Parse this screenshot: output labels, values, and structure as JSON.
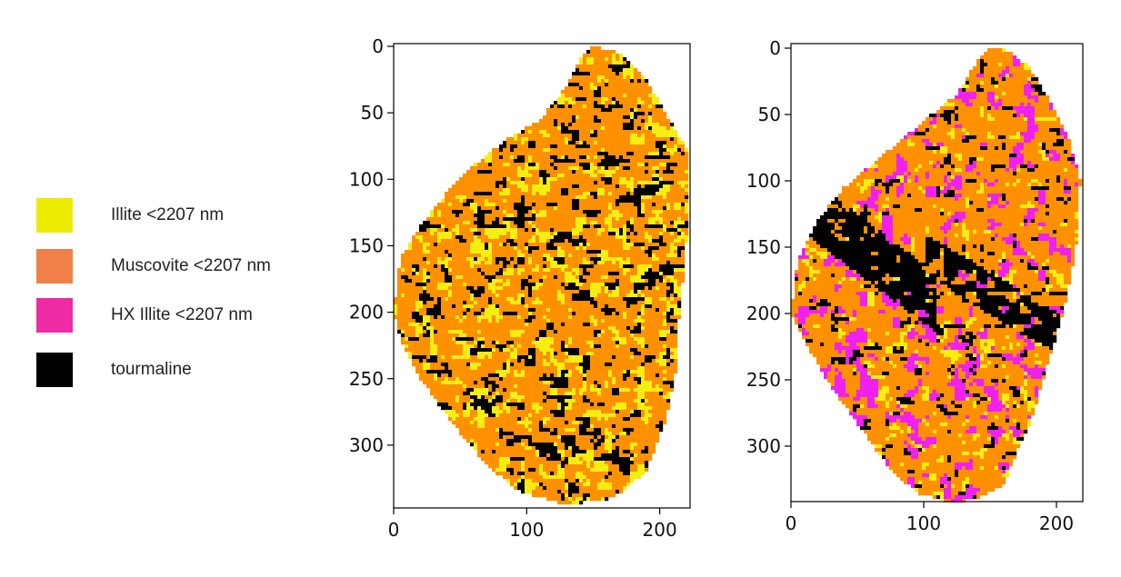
{
  "legend": {
    "items": [
      {
        "label": "Illite <2207 nm",
        "color": "#EDEB00"
      },
      {
        "label": "Muscovite <2207 nm",
        "color": "#F08048"
      },
      {
        "label": "HX Illite <2207 nm",
        "color": "#EE2AA5"
      },
      {
        "label": "tourmaline",
        "color": "#000000"
      }
    ]
  },
  "map_colors": {
    "illite": "#F5EE10",
    "muscovite": "#FF9000",
    "hx_illite": "#F020F0",
    "tourmaline": "#000000"
  },
  "chart_data": [
    {
      "type": "heatmap",
      "title": "",
      "xlabel": "",
      "ylabel": "",
      "xlim": [
        0,
        222
      ],
      "ylim": [
        345,
        0
      ],
      "x_ticks": [
        "0",
        "100",
        "200"
      ],
      "y_ticks": [
        "0",
        "50",
        "100",
        "150",
        "200",
        "250",
        "300"
      ],
      "classes_present": [
        "Illite <2207 nm",
        "Muscovite <2207 nm",
        "tourmaline"
      ],
      "grid": false
    },
    {
      "type": "heatmap",
      "title": "",
      "xlabel": "",
      "ylabel": "",
      "xlim": [
        0,
        220
      ],
      "ylim": [
        345,
        0
      ],
      "x_ticks": [
        "0",
        "100",
        "200"
      ],
      "y_ticks": [
        "0",
        "50",
        "100",
        "150",
        "200",
        "250",
        "300"
      ],
      "classes_present": [
        "Illite <2207 nm",
        "Muscovite <2207 nm",
        "HX Illite <2207 nm",
        "tourmaline"
      ],
      "grid": false
    }
  ]
}
